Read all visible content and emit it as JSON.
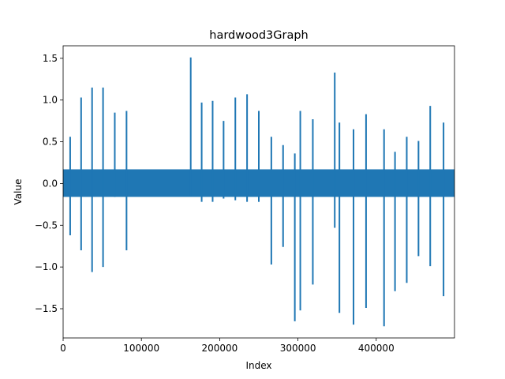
{
  "chart_data": {
    "type": "line",
    "title": "hardwood3Graph",
    "xlabel": "Index",
    "ylabel": "Value",
    "xlim": [
      0,
      500000
    ],
    "ylim": [
      -1.85,
      1.65
    ],
    "grid": false,
    "legend": "none",
    "color": "#1f77b4",
    "xticks": [
      {
        "value": 0,
        "label": "0"
      },
      {
        "value": 100000,
        "label": "100000"
      },
      {
        "value": 200000,
        "label": "200000"
      },
      {
        "value": 300000,
        "label": "300000"
      },
      {
        "value": 400000,
        "label": "400000"
      }
    ],
    "yticks": [
      {
        "value": -1.5,
        "label": "−1.5"
      },
      {
        "value": -1.0,
        "label": "−1.0"
      },
      {
        "value": -0.5,
        "label": "−0.5"
      },
      {
        "value": 0.0,
        "label": "0.0"
      },
      {
        "value": 0.5,
        "label": "0.5"
      },
      {
        "value": 1.0,
        "label": "1.0"
      },
      {
        "value": 1.5,
        "label": "1.5"
      }
    ],
    "noise_band": {
      "x_start": 0,
      "x_end": 500000,
      "y_min": -0.16,
      "y_max": 0.17
    },
    "spikes": [
      {
        "x": 9000,
        "max": 0.56,
        "min": -0.62
      },
      {
        "x": 23000,
        "max": 1.03,
        "min": -0.8
      },
      {
        "x": 37000,
        "max": 1.15,
        "min": -1.06
      },
      {
        "x": 51000,
        "max": 1.15,
        "min": -1.0
      },
      {
        "x": 66000,
        "max": 0.85,
        "min": -0.16
      },
      {
        "x": 81000,
        "max": 0.87,
        "min": -0.8
      },
      {
        "x": 163000,
        "max": 1.51,
        "min": -0.15
      },
      {
        "x": 177000,
        "max": 0.97,
        "min": -0.22
      },
      {
        "x": 191000,
        "max": 0.99,
        "min": -0.22
      },
      {
        "x": 205000,
        "max": 0.75,
        "min": -0.18
      },
      {
        "x": 220000,
        "max": 1.03,
        "min": -0.2
      },
      {
        "x": 235000,
        "max": 1.07,
        "min": -0.22
      },
      {
        "x": 250000,
        "max": 0.87,
        "min": -0.22
      },
      {
        "x": 266000,
        "max": 0.56,
        "min": -0.97
      },
      {
        "x": 281000,
        "max": 0.46,
        "min": -0.76
      },
      {
        "x": 296000,
        "max": 0.36,
        "min": -1.65
      },
      {
        "x": 303000,
        "max": 0.87,
        "min": -1.52
      },
      {
        "x": 319000,
        "max": 0.77,
        "min": -1.21
      },
      {
        "x": 347000,
        "max": 1.33,
        "min": -0.53
      },
      {
        "x": 353000,
        "max": 0.73,
        "min": -1.55
      },
      {
        "x": 371000,
        "max": 0.65,
        "min": -1.69
      },
      {
        "x": 387000,
        "max": 0.83,
        "min": -1.49
      },
      {
        "x": 410000,
        "max": 0.65,
        "min": -1.71
      },
      {
        "x": 424000,
        "max": 0.38,
        "min": -1.29
      },
      {
        "x": 439000,
        "max": 0.56,
        "min": -1.19
      },
      {
        "x": 454000,
        "max": 0.51,
        "min": -0.87
      },
      {
        "x": 469000,
        "max": 0.93,
        "min": -0.99
      },
      {
        "x": 486000,
        "max": 0.73,
        "min": -1.35
      }
    ]
  }
}
